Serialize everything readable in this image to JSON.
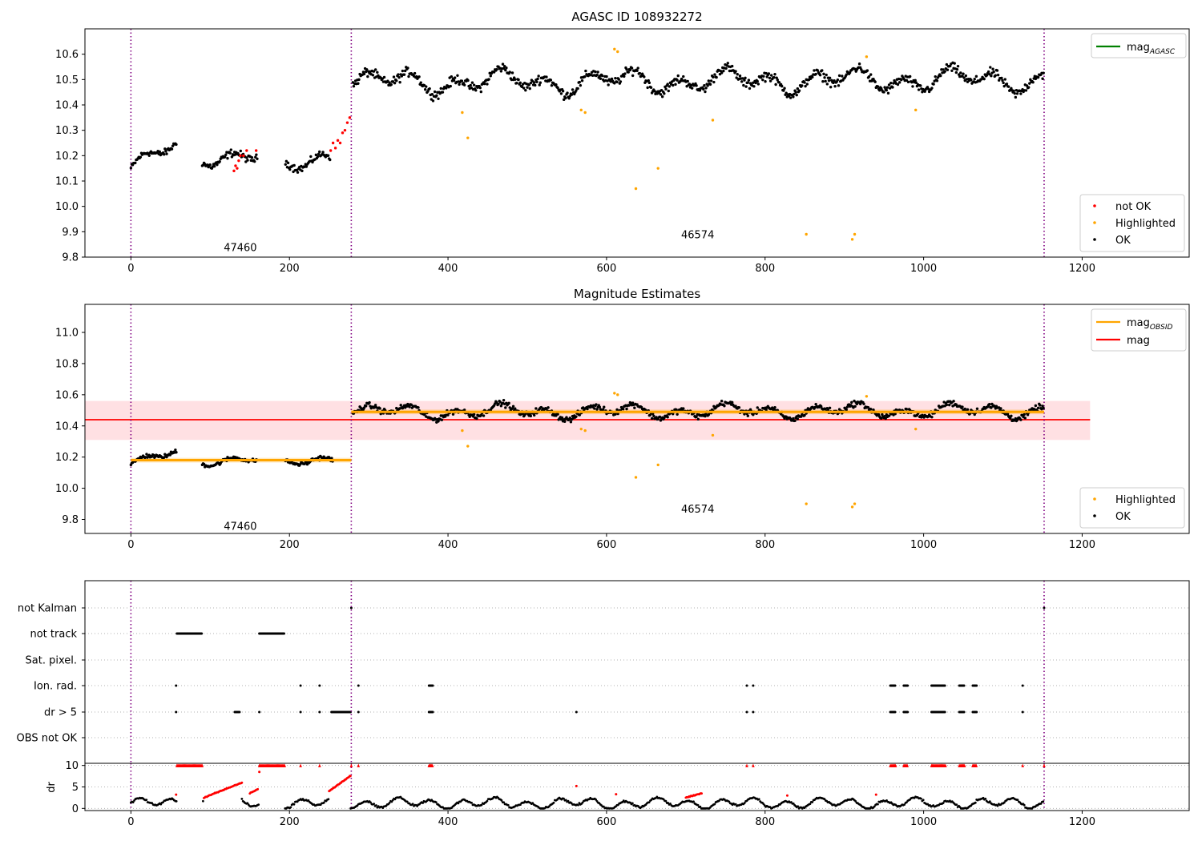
{
  "chart_data": [
    {
      "type": "scatter",
      "title": "AGASC ID 108932272",
      "xlim": [
        -58,
        1335
      ],
      "ylim": [
        9.8,
        10.7
      ],
      "xticks": [
        "0",
        "200",
        "400",
        "600",
        "800",
        "1000",
        "1200"
      ],
      "yticks": [
        "9.8",
        "9.9",
        "10.0",
        "10.1",
        "10.2",
        "10.3",
        "10.4",
        "10.5",
        "10.6"
      ],
      "xtick_values": [
        0,
        200,
        400,
        600,
        800,
        1000,
        1200
      ],
      "ytick_values": [
        9.8,
        9.9,
        10.0,
        10.1,
        10.2,
        10.3,
        10.4,
        10.5,
        10.6
      ],
      "obs_boundaries": [
        0,
        278,
        1152
      ],
      "obsid_labels": [
        {
          "text": "47460",
          "x": 138,
          "y": 9.84
        },
        {
          "text": "46574",
          "x": 715,
          "y": 9.89
        }
      ],
      "legend_lines": {
        "placement": "upper right",
        "entries": [
          {
            "name": "mag",
            "sub": "AGASC",
            "color": "#008000"
          }
        ]
      },
      "legend_markers": {
        "placement": "lower right",
        "entries": [
          {
            "name": "not OK",
            "color": "#ff0000"
          },
          {
            "name": "Highlighted",
            "color": "#ffa500"
          },
          {
            "name": "OK",
            "color": "#000000"
          }
        ]
      },
      "series": [
        {
          "name": "OK",
          "color": "#000000",
          "segments": [
            {
              "x0": 0,
              "x1": 58,
              "y0": 10.15,
              "y1": 10.24,
              "amp": 0.035
            },
            {
              "x0": 90,
              "x1": 160,
              "y0": 10.2,
              "y1": 10.2,
              "amp": 0.04
            },
            {
              "x0": 195,
              "x1": 252,
              "y0": 10.15,
              "y1": 10.21,
              "amp": 0.04
            },
            {
              "x0": 280,
              "x1": 1152,
              "y0": 10.49,
              "y1": 10.5,
              "amp": 0.05
            }
          ]
        },
        {
          "name": "not OK",
          "color": "#ff0000",
          "points": [
            [
              130,
              10.14
            ],
            [
              132,
              10.16
            ],
            [
              134,
              10.15
            ],
            [
              136,
              10.18
            ],
            [
              138,
              10.2
            ],
            [
              142,
              10.2
            ],
            [
              146,
              10.22
            ],
            [
              158,
              10.22
            ],
            [
              252,
              10.22
            ],
            [
              255,
              10.25
            ],
            [
              258,
              10.23
            ],
            [
              261,
              10.26
            ],
            [
              264,
              10.25
            ],
            [
              267,
              10.29
            ],
            [
              270,
              10.3
            ],
            [
              273,
              10.33
            ],
            [
              276,
              10.35
            ]
          ]
        },
        {
          "name": "Highlighted",
          "color": "#ffa500",
          "points": [
            [
              418,
              10.37
            ],
            [
              425,
              10.27
            ],
            [
              568,
              10.38
            ],
            [
              573,
              10.37
            ],
            [
              610,
              10.62
            ],
            [
              614,
              10.61
            ],
            [
              637,
              10.07
            ],
            [
              665,
              10.15
            ],
            [
              734,
              10.34
            ],
            [
              852,
              9.89
            ],
            [
              910,
              9.87
            ],
            [
              913,
              9.89
            ],
            [
              928,
              10.59
            ],
            [
              990,
              10.38
            ]
          ]
        }
      ]
    },
    {
      "type": "scatter",
      "title": "Magnitude Estimates",
      "xlim": [
        -58,
        1335
      ],
      "ylim": [
        9.71,
        11.18
      ],
      "xticks": [
        "0",
        "200",
        "400",
        "600",
        "800",
        "1000",
        "1200"
      ],
      "yticks": [
        "9.8",
        "10.0",
        "10.2",
        "10.4",
        "10.6",
        "10.8",
        "11.0"
      ],
      "xtick_values": [
        0,
        200,
        400,
        600,
        800,
        1000,
        1200
      ],
      "ytick_values": [
        9.8,
        10.0,
        10.2,
        10.4,
        10.6,
        10.8,
        11.0
      ],
      "obs_boundaries": [
        0,
        278,
        1152
      ],
      "obsid_labels": [
        {
          "text": "47460",
          "x": 138,
          "y": 9.76
        },
        {
          "text": "46574",
          "x": 715,
          "y": 9.87
        }
      ],
      "mag_band": {
        "x0": -58,
        "x1": 1210,
        "y0": 10.31,
        "y1": 10.56,
        "color": "#ffdde0"
      },
      "mag_line": {
        "name": "mag",
        "x0": -58,
        "x1": 1210,
        "y": 10.44,
        "color": "#ff0000"
      },
      "obsid_mag": [
        {
          "x0": 0,
          "x1": 278,
          "y": 10.18,
          "band": [
            10.165,
            10.195
          ]
        },
        {
          "x0": 278,
          "x1": 1152,
          "y": 10.49,
          "band": [
            10.475,
            10.505
          ]
        }
      ],
      "legend_lines": {
        "placement": "upper right",
        "entries": [
          {
            "name": "mag",
            "sub": "OBSID",
            "color": "#ffa500"
          },
          {
            "name": "mag",
            "sub": "",
            "color": "#ff0000"
          }
        ]
      },
      "legend_markers": {
        "placement": "lower right",
        "entries": [
          {
            "name": "Highlighted",
            "color": "#ffa500"
          },
          {
            "name": "OK",
            "color": "#000000"
          }
        ]
      },
      "series": [
        {
          "name": "OK",
          "color": "#000000",
          "segments": [
            {
              "x0": 0,
              "x1": 58,
              "y0": 10.15,
              "y1": 10.23,
              "amp": 0.035
            },
            {
              "x0": 90,
              "x1": 160,
              "y0": 10.18,
              "y1": 10.19,
              "amp": 0.035
            },
            {
              "x0": 195,
              "x1": 255,
              "y0": 10.16,
              "y1": 10.2,
              "amp": 0.035
            },
            {
              "x0": 280,
              "x1": 1152,
              "y0": 10.49,
              "y1": 10.5,
              "amp": 0.05
            }
          ]
        },
        {
          "name": "Highlighted",
          "color": "#ffa500",
          "points": [
            [
              418,
              10.37
            ],
            [
              425,
              10.27
            ],
            [
              568,
              10.38
            ],
            [
              573,
              10.37
            ],
            [
              610,
              10.61
            ],
            [
              614,
              10.6
            ],
            [
              637,
              10.07
            ],
            [
              665,
              10.15
            ],
            [
              734,
              10.34
            ],
            [
              852,
              9.9
            ],
            [
              910,
              9.88
            ],
            [
              913,
              9.9
            ],
            [
              928,
              10.59
            ],
            [
              990,
              10.38
            ]
          ]
        }
      ]
    },
    {
      "type": "scatter",
      "title": "",
      "xlim": [
        -58,
        1335
      ],
      "categories": [
        "not Kalman",
        "not track",
        "Sat. pixel.",
        "Ion. rad.",
        "dr > 5",
        "OBS not OK"
      ],
      "obs_boundaries": [
        0,
        278,
        1152
      ],
      "flags": {
        "not Kalman": [
          [
            278,
            278
          ],
          [
            1152,
            1152
          ]
        ],
        "not track": [
          [
            58,
            90
          ],
          [
            162,
            194
          ]
        ],
        "Sat. pixel.": [],
        "Ion. rad.": [
          [
            57,
            57
          ],
          [
            214,
            214
          ],
          [
            238,
            238
          ],
          [
            287,
            287
          ],
          [
            376,
            381
          ],
          [
            777,
            777
          ],
          [
            785,
            785
          ],
          [
            958,
            965
          ],
          [
            975,
            980
          ],
          [
            1010,
            1028
          ],
          [
            1045,
            1052
          ],
          [
            1062,
            1067
          ],
          [
            1125,
            1125
          ]
        ],
        "dr > 5": [
          [
            57,
            57
          ],
          [
            131,
            138
          ],
          [
            162,
            162
          ],
          [
            214,
            214
          ],
          [
            238,
            238
          ],
          [
            253,
            277
          ],
          [
            287,
            287
          ],
          [
            376,
            381
          ],
          [
            562,
            562
          ],
          [
            777,
            777
          ],
          [
            785,
            785
          ],
          [
            958,
            965
          ],
          [
            975,
            980
          ],
          [
            1010,
            1028
          ],
          [
            1045,
            1052
          ],
          [
            1062,
            1067
          ],
          [
            1125,
            1125
          ]
        ],
        "OBS not OK": []
      }
    },
    {
      "type": "scatter",
      "title": "",
      "ylabel": "dr",
      "xlim": [
        -58,
        1335
      ],
      "ylim": [
        -0.5,
        10.5
      ],
      "xticks": [
        "0",
        "200",
        "400",
        "600",
        "800",
        "1000",
        "1200"
      ],
      "yticks": [
        "0",
        "5",
        "10"
      ],
      "xtick_values": [
        0,
        200,
        400,
        600,
        800,
        1000,
        1200
      ],
      "ytick_values": [
        0,
        5,
        10
      ],
      "obs_boundaries": [
        0,
        278,
        1152
      ],
      "clipped_red": [
        [
          58,
          90
        ],
        [
          162,
          194
        ],
        [
          214,
          214
        ],
        [
          238,
          238
        ],
        [
          278,
          278
        ],
        [
          287,
          287
        ],
        [
          376,
          381
        ],
        [
          777,
          777
        ],
        [
          785,
          785
        ],
        [
          958,
          965
        ],
        [
          975,
          980
        ],
        [
          1010,
          1028
        ],
        [
          1045,
          1052
        ],
        [
          1062,
          1067
        ],
        [
          1125,
          1125
        ],
        [
          1152,
          1152
        ]
      ],
      "red_ramps": [
        [
          92,
          140,
          2.5,
          6.0
        ],
        [
          150,
          160,
          3.5,
          4.5
        ],
        [
          250,
          277,
          4.0,
          7.6
        ],
        [
          700,
          720,
          2.5,
          3.5
        ]
      ],
      "red_points": [
        [
          57,
          3.2
        ],
        [
          162,
          8.5
        ],
        [
          562,
          5.2
        ],
        [
          612,
          3.3
        ],
        [
          828,
          3.0
        ],
        [
          940,
          3.2
        ]
      ]
    }
  ]
}
